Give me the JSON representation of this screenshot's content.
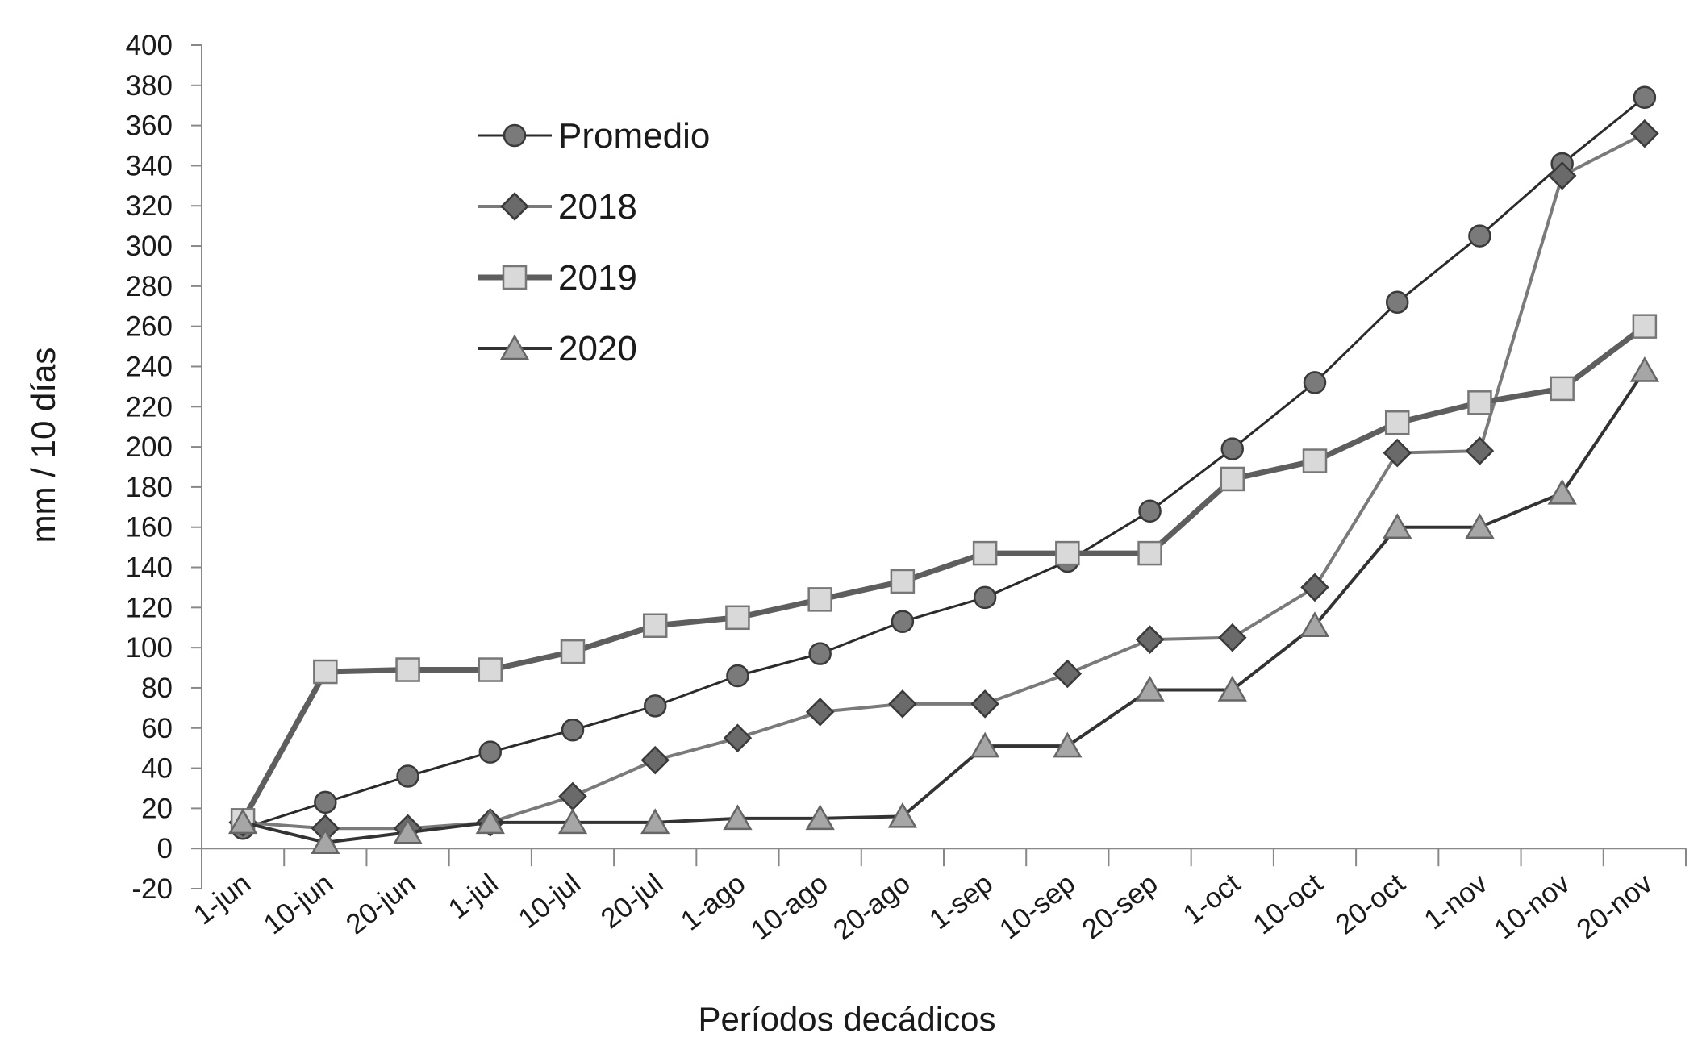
{
  "chart_data": {
    "type": "line",
    "title": "",
    "xlabel": "Períodos decádicos",
    "ylabel": "mm / 10 días",
    "ylim": [
      -20,
      400
    ],
    "ytick_step": 20,
    "yticks": [
      "400",
      "380",
      "360",
      "340",
      "320",
      "300",
      "280",
      "260",
      "240",
      "220",
      "200",
      "180",
      "160",
      "140",
      "120",
      "100",
      "80",
      "60",
      "40",
      "20",
      "0",
      "-20"
    ],
    "categories": [
      "1-jun",
      "10-jun",
      "20-jun",
      "1-jul",
      "10-jul",
      "20-jul",
      "1-ago",
      "10-ago",
      "20-ago",
      "1-sep",
      "10-sep",
      "20-sep",
      "1-oct",
      "10-oct",
      "20-oct",
      "1-nov",
      "10-nov",
      "20-nov"
    ],
    "grid": false,
    "legend_position": "top-left",
    "series": [
      {
        "name": "Promedio",
        "marker": "circle",
        "color": "#2b2b2b",
        "marker_fill": "#7a7a7a",
        "values": [
          10,
          23,
          36,
          48,
          59,
          71,
          86,
          97,
          113,
          125,
          143,
          168,
          199,
          232,
          272,
          305,
          341,
          374
        ]
      },
      {
        "name": "2018",
        "marker": "diamond",
        "color": "#7a7a7a",
        "marker_fill": "#6a6a6a",
        "values": [
          13,
          10,
          10,
          13,
          26,
          44,
          55,
          68,
          72,
          72,
          87,
          104,
          105,
          130,
          197,
          198,
          335,
          356
        ]
      },
      {
        "name": "2019",
        "marker": "square",
        "color": "#5e5e5e",
        "marker_fill": "#d9d9d9",
        "values": [
          14,
          88,
          89,
          89,
          98,
          111,
          115,
          124,
          133,
          147,
          147,
          147,
          184,
          193,
          212,
          222,
          229,
          260
        ]
      },
      {
        "name": "2020",
        "marker": "triangle",
        "color": "#333333",
        "marker_fill": "#a6a6a6",
        "values": [
          13,
          3,
          8,
          13,
          13,
          13,
          15,
          15,
          16,
          51,
          51,
          79,
          79,
          111,
          160,
          160,
          177,
          238
        ]
      }
    ]
  }
}
